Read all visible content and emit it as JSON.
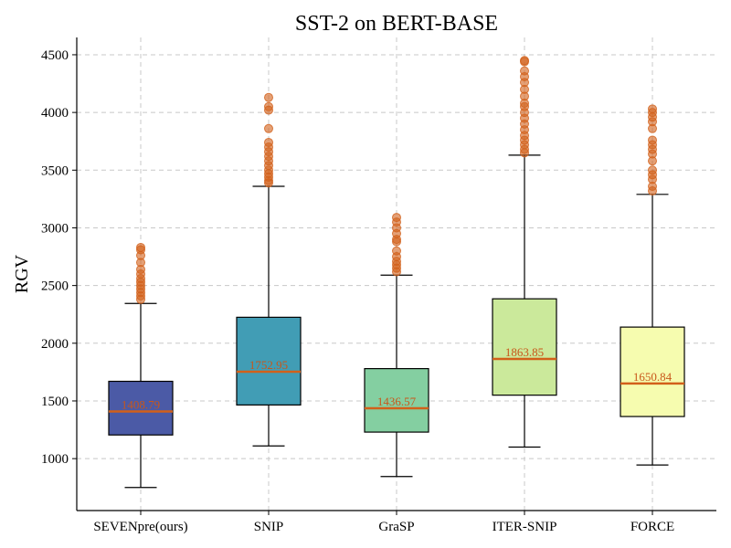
{
  "chart_data": {
    "type": "box",
    "title": "SST-2 on BERT-BASE",
    "xlabel": "",
    "ylabel": "RGV",
    "ylim": [
      550,
      4650
    ],
    "yticks": [
      1000,
      1500,
      2000,
      2500,
      3000,
      3500,
      4000,
      4500
    ],
    "grid": true,
    "median_color": "#d2601a",
    "outlier_color": "#d2601a",
    "boxes": [
      {
        "name": "SEVENpre(ours)",
        "color": "#4b5aa6",
        "whisker_low": 750,
        "q1": 1205,
        "median": 1408.79,
        "median_label": "1408.79",
        "q3": 1670,
        "whisker_high": 2345,
        "outliers": [
          2380,
          2410,
          2440,
          2470,
          2500,
          2530,
          2560,
          2600,
          2640,
          2700,
          2760,
          2810,
          2830
        ]
      },
      {
        "name": "SNIP",
        "color": "#419db5",
        "whisker_low": 1110,
        "q1": 1465,
        "median": 1752.95,
        "median_label": "1752.95",
        "q3": 2225,
        "whisker_high": 3360,
        "outliers": [
          3390,
          3410,
          3440,
          3470,
          3500,
          3540,
          3580,
          3620,
          3660,
          3700,
          3740,
          3860,
          4020,
          4050,
          4130
        ]
      },
      {
        "name": "GraSP",
        "color": "#84cfa1",
        "whisker_low": 845,
        "q1": 1230,
        "median": 1436.57,
        "median_label": "1436.57",
        "q3": 1780,
        "whisker_high": 2590,
        "outliers": [
          2620,
          2650,
          2680,
          2710,
          2750,
          2800,
          2880,
          2900,
          2950,
          3000,
          3050,
          3090
        ]
      },
      {
        "name": "ITER-SNIP",
        "color": "#cbe99b",
        "whisker_low": 1100,
        "q1": 1550,
        "median": 1863.85,
        "median_label": "1863.85",
        "q3": 2385,
        "whisker_high": 3630,
        "outliers": [
          3650,
          3680,
          3720,
          3760,
          3800,
          3850,
          3900,
          3950,
          4000,
          4050,
          4080,
          4140,
          4200,
          4260,
          4310,
          4360,
          4440,
          4450
        ]
      },
      {
        "name": "FORCE",
        "color": "#f6fcaf",
        "whisker_low": 945,
        "q1": 1365,
        "median": 1650.84,
        "median_label": "1650.84",
        "q3": 2140,
        "whisker_high": 3290,
        "outliers": [
          3320,
          3360,
          3420,
          3460,
          3500,
          3580,
          3640,
          3680,
          3720,
          3760,
          3860,
          3920,
          3960,
          4000,
          4030
        ]
      }
    ]
  }
}
